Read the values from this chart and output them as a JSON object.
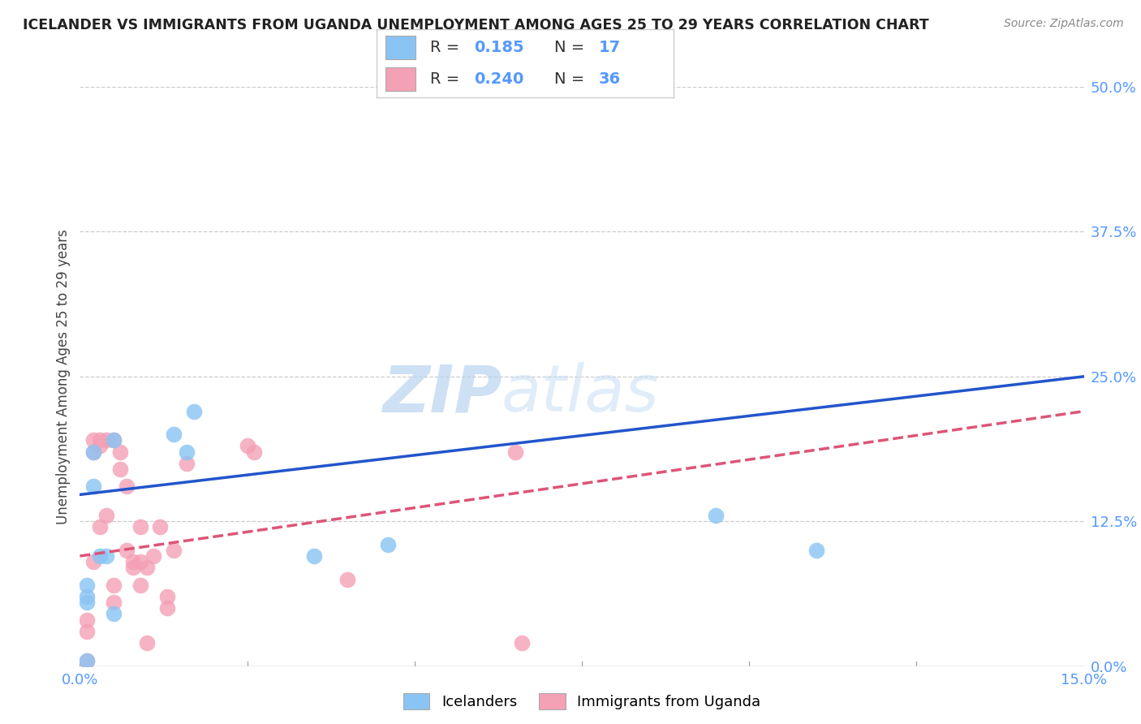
{
  "title": "ICELANDER VS IMMIGRANTS FROM UGANDA UNEMPLOYMENT AMONG AGES 25 TO 29 YEARS CORRELATION CHART",
  "source": "Source: ZipAtlas.com",
  "accent_color": "#5599ff",
  "ylabel": "Unemployment Among Ages 25 to 29 years",
  "xmin": 0.0,
  "xmax": 0.15,
  "ymin": 0.0,
  "ymax": 0.5,
  "yticks_right": [
    0.0,
    0.125,
    0.25,
    0.375,
    0.5
  ],
  "ytick_labels_right": [
    "0.0%",
    "12.5%",
    "25.0%",
    "37.5%",
    "50.0%"
  ],
  "blue_color": "#89c4f4",
  "pink_color": "#f4a0b5",
  "blue_line_color": "#2255cc",
  "pink_line_color": "#dd5577",
  "legend_label1": "Icelanders",
  "legend_label2": "Immigrants from Uganda",
  "watermark_zip": "ZIP",
  "watermark_atlas": "atlas",
  "blue_scatter_x": [
    0.001,
    0.001,
    0.001,
    0.001,
    0.002,
    0.002,
    0.003,
    0.004,
    0.005,
    0.005,
    0.014,
    0.016,
    0.017,
    0.035,
    0.046,
    0.095,
    0.11
  ],
  "blue_scatter_y": [
    0.06,
    0.055,
    0.07,
    0.005,
    0.155,
    0.185,
    0.095,
    0.095,
    0.195,
    0.045,
    0.2,
    0.185,
    0.22,
    0.095,
    0.105,
    0.13,
    0.1
  ],
  "pink_scatter_x": [
    0.001,
    0.001,
    0.001,
    0.002,
    0.002,
    0.002,
    0.003,
    0.003,
    0.003,
    0.004,
    0.004,
    0.005,
    0.005,
    0.005,
    0.006,
    0.006,
    0.007,
    0.007,
    0.008,
    0.008,
    0.009,
    0.009,
    0.009,
    0.01,
    0.01,
    0.011,
    0.012,
    0.013,
    0.013,
    0.014,
    0.016,
    0.025,
    0.026,
    0.04,
    0.065,
    0.066
  ],
  "pink_scatter_y": [
    0.04,
    0.03,
    0.005,
    0.195,
    0.185,
    0.09,
    0.195,
    0.19,
    0.12,
    0.195,
    0.13,
    0.195,
    0.07,
    0.055,
    0.185,
    0.17,
    0.155,
    0.1,
    0.085,
    0.09,
    0.12,
    0.09,
    0.07,
    0.085,
    0.02,
    0.095,
    0.12,
    0.05,
    0.06,
    0.1,
    0.175,
    0.19,
    0.185,
    0.075,
    0.185,
    0.02
  ],
  "blue_line_x0": 0.0,
  "blue_line_y0": 0.148,
  "blue_line_x1": 0.15,
  "blue_line_y1": 0.25,
  "pink_line_x0": 0.0,
  "pink_line_y0": 0.095,
  "pink_line_x1": 0.15,
  "pink_line_y1": 0.22
}
